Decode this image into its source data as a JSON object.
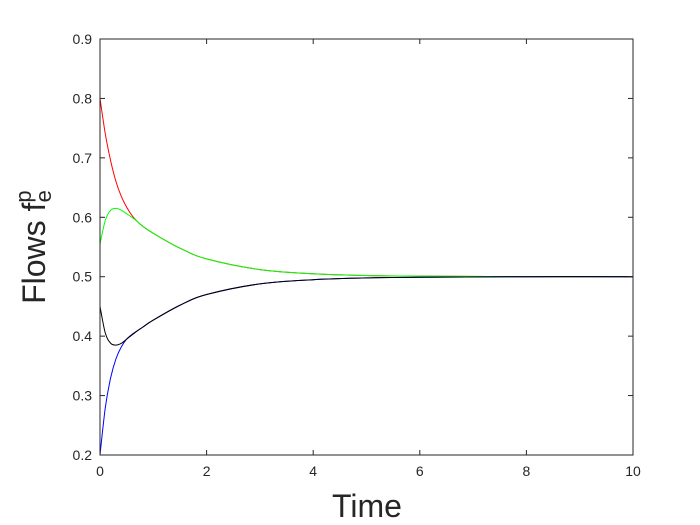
{
  "chart_data": {
    "type": "line",
    "title": "",
    "xlabel": "Time",
    "ylabel": {
      "main": "Flows f",
      "superscript": "p",
      "subscript": "e"
    },
    "xlim": [
      0,
      10
    ],
    "ylim": [
      0.2,
      0.9
    ],
    "x_ticks": [
      "0",
      "2",
      "4",
      "6",
      "8",
      "10"
    ],
    "y_ticks": [
      "0.2",
      "0.3",
      "0.4",
      "0.5",
      "0.6",
      "0.7",
      "0.8",
      "0.9"
    ],
    "x_tick_values": [
      0,
      2,
      4,
      6,
      8,
      10
    ],
    "y_tick_values": [
      0.2,
      0.3,
      0.4,
      0.5,
      0.6,
      0.7,
      0.8,
      0.9
    ],
    "grid": false,
    "series": [
      {
        "color": "#ff0000",
        "x": [
          0,
          0.1,
          0.2,
          0.3,
          0.4,
          0.5,
          0.6,
          0.7,
          0.8,
          1.0,
          1.5,
          2.0,
          3.0,
          4.0,
          5.0,
          6.0,
          8.0,
          10.0
        ],
        "y": [
          0.8,
          0.74,
          0.695,
          0.66,
          0.635,
          0.617,
          0.603,
          0.593,
          0.585,
          0.573,
          0.548,
          0.53,
          0.512,
          0.505,
          0.502,
          0.501,
          0.5,
          0.5
        ]
      },
      {
        "color": "#00ff00",
        "x": [
          0,
          0.1,
          0.2,
          0.3,
          0.4,
          0.5,
          0.6,
          0.7,
          0.8,
          1.0,
          1.5,
          2.0,
          3.0,
          4.0,
          5.0,
          6.0,
          8.0,
          10.0
        ],
        "y": [
          0.555,
          0.595,
          0.612,
          0.615,
          0.612,
          0.606,
          0.6,
          0.593,
          0.585,
          0.573,
          0.548,
          0.53,
          0.512,
          0.505,
          0.502,
          0.501,
          0.5,
          0.5
        ]
      },
      {
        "color": "#0000ff",
        "x": [
          0,
          0.1,
          0.2,
          0.3,
          0.4,
          0.5,
          0.6,
          0.7,
          0.8,
          1.0,
          1.5,
          2.0,
          3.0,
          4.0,
          5.0,
          6.0,
          8.0,
          10.0
        ],
        "y": [
          0.2,
          0.28,
          0.33,
          0.362,
          0.382,
          0.395,
          0.403,
          0.409,
          0.415,
          0.427,
          0.452,
          0.47,
          0.488,
          0.495,
          0.498,
          0.499,
          0.5,
          0.5
        ]
      },
      {
        "color": "#000000",
        "x": [
          0,
          0.1,
          0.2,
          0.3,
          0.4,
          0.5,
          0.6,
          0.7,
          0.8,
          1.0,
          1.5,
          2.0,
          3.0,
          4.0,
          5.0,
          6.0,
          8.0,
          10.0
        ],
        "y": [
          0.45,
          0.405,
          0.388,
          0.385,
          0.388,
          0.395,
          0.402,
          0.409,
          0.415,
          0.427,
          0.452,
          0.47,
          0.488,
          0.495,
          0.498,
          0.499,
          0.5,
          0.5
        ]
      }
    ]
  }
}
